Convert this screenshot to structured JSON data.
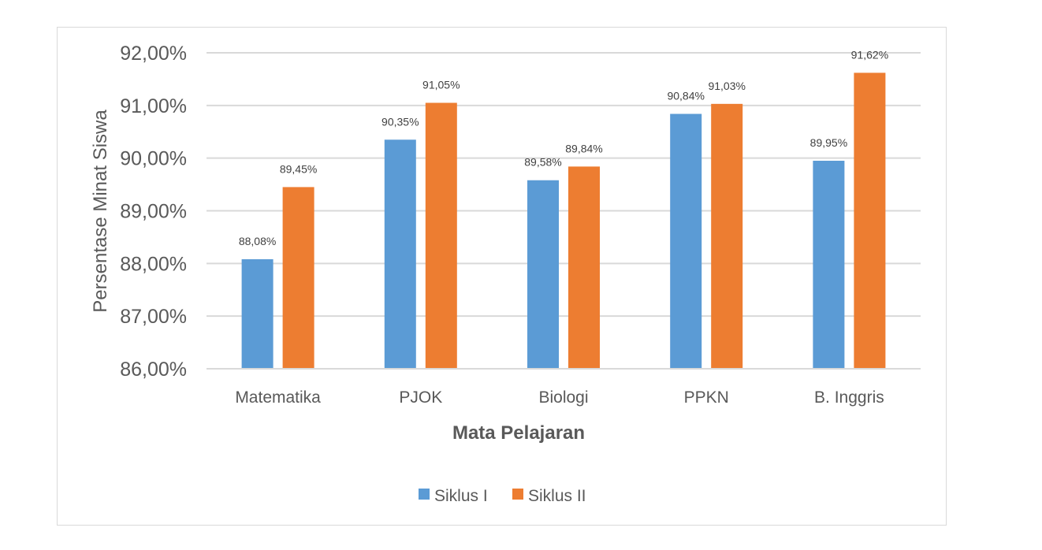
{
  "chart_data": {
    "type": "bar",
    "title": "",
    "xlabel": "Mata Pelajaran",
    "ylabel": "Persentase Minat Siswa",
    "ylim": [
      86,
      92
    ],
    "yticks": [
      86,
      87,
      88,
      89,
      90,
      91,
      92
    ],
    "ytick_labels": [
      "86,00%",
      "87,00%",
      "88,00%",
      "89,00%",
      "90,00%",
      "91,00%",
      "92,00%"
    ],
    "grid": true,
    "legend_position": "bottom",
    "categories": [
      "Matematika",
      "PJOK",
      "Biologi",
      "PPKN",
      "B. Inggris"
    ],
    "series": [
      {
        "name": "Siklus I",
        "color": "#5B9BD5",
        "values": [
          88.08,
          90.35,
          89.58,
          90.84,
          89.95
        ],
        "labels": [
          "88,08%",
          "90,35%",
          "89,58%",
          "90,84%",
          "89,95%"
        ]
      },
      {
        "name": "Siklus II",
        "color": "#ED7D31",
        "values": [
          89.45,
          91.05,
          89.84,
          91.03,
          91.62
        ],
        "labels": [
          "89,45%",
          "91,05%",
          "89,84%",
          "91,03%",
          "91,62%"
        ]
      }
    ]
  }
}
